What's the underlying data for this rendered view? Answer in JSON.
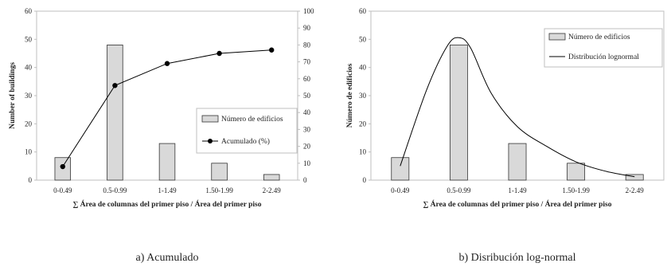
{
  "chart_data": [
    {
      "type": "bar",
      "caption": "a) Acumulado",
      "categories": [
        "0-0.49",
        "0.5-0.99",
        "1-1.49",
        "1.50-1.99",
        "2-2.49"
      ],
      "xlabel": "∑ Área de columnas del primer piso / Área del primer piso",
      "ylabel": "Number of buildings",
      "ylim": [
        0,
        60
      ],
      "yticks": [
        0,
        10,
        20,
        30,
        40,
        50,
        60
      ],
      "y2lim": [
        0,
        100
      ],
      "y2ticks": [
        0,
        10,
        20,
        30,
        40,
        50,
        60,
        70,
        80,
        90,
        100
      ],
      "grid": false,
      "legend_position": "right",
      "series": [
        {
          "name": "Número de edificios",
          "type": "bar",
          "axis": "left",
          "values": [
            8,
            48,
            13,
            6,
            2
          ],
          "color": "#d9d9d9"
        },
        {
          "name": "Acumulado (%)",
          "type": "line",
          "axis": "right",
          "marker": "circle",
          "values": [
            8,
            56,
            69,
            75,
            77
          ],
          "color": "#000000"
        }
      ]
    },
    {
      "type": "bar",
      "caption": "b) Disribución log-normal",
      "categories": [
        "0-0.49",
        "0.5-0.99",
        "1-1.49",
        "1.50-1.99",
        "2-2.49"
      ],
      "xlabel": "∑ Área de columnas del primer piso / Área del primer piso",
      "ylabel": "Número de edificios",
      "ylim": [
        0,
        60
      ],
      "yticks": [
        0,
        10,
        20,
        30,
        40,
        50,
        60
      ],
      "grid": false,
      "legend_position": "top-right",
      "series": [
        {
          "name": "Número de edificios",
          "type": "bar",
          "values": [
            8,
            48,
            13,
            6,
            2
          ],
          "color": "#d9d9d9"
        },
        {
          "name": "Distribución lognormal",
          "type": "curve",
          "color": "#000000",
          "points": [
            [
              0,
              5
            ],
            [
              0.45,
              32
            ],
            [
              0.8,
              47.5
            ],
            [
              1.0,
              50.6
            ],
            [
              1.2,
              47
            ],
            [
              1.55,
              31
            ],
            [
              2.0,
              19
            ],
            [
              2.5,
              12
            ],
            [
              3.0,
              6.5
            ],
            [
              3.5,
              3.2
            ],
            [
              4.0,
              1.2
            ]
          ]
        }
      ]
    }
  ]
}
